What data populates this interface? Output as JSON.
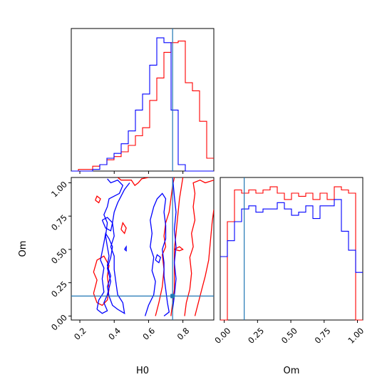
{
  "chart_data": {
    "type": "corner",
    "parameters": [
      "H0",
      "Om"
    ],
    "truths": {
      "H0": 0.74,
      "Om": 0.15
    },
    "colors": {
      "red": "#ff0000",
      "blue": "#0000ff",
      "truth": "#1f77b4"
    },
    "grid": false,
    "ticks": {
      "H0": [
        "0.2",
        "0.4",
        "0.6",
        "0.8"
      ],
      "Om": [
        "0.00",
        "0.25",
        "0.50",
        "0.75",
        "1.00"
      ]
    },
    "hist_H0": {
      "xlim": [
        0.15,
        0.98
      ],
      "bins": [
        0.15,
        0.1915,
        0.233,
        0.2745,
        0.316,
        0.3575,
        0.399,
        0.4405,
        0.482,
        0.5235,
        0.565,
        0.6065,
        0.648,
        0.6895,
        0.731,
        0.7725,
        0.814,
        0.8555,
        0.897,
        0.9385,
        0.98
      ],
      "series": [
        {
          "color": "red",
          "values": [
            0,
            1,
            1,
            3,
            4,
            7,
            9,
            12,
            16,
            22,
            27,
            44,
            58,
            74,
            80,
            81,
            55,
            50,
            31,
            8
          ]
        },
        {
          "color": "blue",
          "values": [
            0,
            0,
            0,
            1,
            4,
            8,
            11,
            17,
            25,
            38,
            48,
            66,
            83,
            80,
            38,
            4,
            0,
            0,
            0,
            0
          ]
        }
      ]
    },
    "hist_Om": {
      "xlim": [
        -0.03,
        1.04
      ],
      "bins": [
        -0.03,
        0.0235,
        0.077,
        0.1305,
        0.184,
        0.2375,
        0.291,
        0.3445,
        0.398,
        0.4515,
        0.505,
        0.5585,
        0.612,
        0.6655,
        0.719,
        0.7725,
        0.826,
        0.8795,
        0.933,
        0.9865,
        1.04
      ],
      "series": [
        {
          "color": "red",
          "values": [
            0,
            62,
            82,
            80,
            82,
            80,
            82,
            84,
            80,
            76,
            80,
            78,
            80,
            76,
            80,
            76,
            84,
            82,
            80,
            0
          ]
        },
        {
          "color": "blue",
          "values": [
            40,
            50,
            62,
            70,
            72,
            68,
            70,
            70,
            74,
            70,
            66,
            68,
            72,
            64,
            72,
            72,
            76,
            56,
            44,
            30
          ]
        }
      ]
    },
    "scatter_2d": {
      "xlim": [
        0.15,
        0.98
      ],
      "ylim": [
        -0.03,
        1.04
      ],
      "xlabel": "H0",
      "ylabel": "Om",
      "contours": [
        {
          "color": "red",
          "points": [
            [
              0.42,
              1.04
            ],
            [
              0.44,
              1.02
            ],
            [
              0.5,
              1.02
            ],
            [
              0.52,
              0.98
            ],
            [
              0.54,
              1.0
            ],
            [
              0.56,
              1.03
            ],
            [
              0.6,
              1.04
            ]
          ]
        },
        {
          "color": "red",
          "points": [
            [
              0.73,
              0.0
            ],
            [
              0.74,
              0.1
            ],
            [
              0.75,
              0.2
            ],
            [
              0.75,
              0.35
            ],
            [
              0.75,
              0.5
            ],
            [
              0.76,
              0.62
            ],
            [
              0.77,
              0.75
            ],
            [
              0.78,
              0.88
            ],
            [
              0.79,
              0.96
            ],
            [
              0.8,
              1.04
            ]
          ]
        },
        {
          "color": "red",
          "points": [
            [
              0.64,
              0.0
            ],
            [
              0.66,
              0.1
            ],
            [
              0.68,
              0.22
            ],
            [
              0.69,
              0.35
            ],
            [
              0.68,
              0.46
            ],
            [
              0.7,
              0.52
            ],
            [
              0.69,
              0.6
            ],
            [
              0.7,
              0.7
            ],
            [
              0.72,
              0.78
            ],
            [
              0.73,
              0.88
            ],
            [
              0.74,
              0.98
            ],
            [
              0.75,
              1.04
            ]
          ]
        },
        {
          "color": "red",
          "points": [
            [
              0.81,
              0.0
            ],
            [
              0.82,
              0.1
            ],
            [
              0.84,
              0.2
            ],
            [
              0.85,
              0.32
            ],
            [
              0.84,
              0.44
            ],
            [
              0.86,
              0.52
            ],
            [
              0.85,
              0.62
            ],
            [
              0.87,
              0.72
            ],
            [
              0.86,
              0.82
            ],
            [
              0.87,
              0.92
            ],
            [
              0.86,
              1.0
            ],
            [
              0.9,
              1.02
            ],
            [
              0.93,
              1.0
            ],
            [
              0.98,
              1.02
            ]
          ]
        },
        {
          "color": "red",
          "points": [
            [
              0.87,
              0.0
            ],
            [
              0.89,
              0.1
            ],
            [
              0.91,
              0.2
            ],
            [
              0.93,
              0.3
            ],
            [
              0.95,
              0.42
            ],
            [
              0.96,
              0.56
            ],
            [
              0.97,
              0.7
            ],
            [
              0.98,
              0.8
            ]
          ]
        },
        {
          "color": "red",
          "points": [
            [
              0.28,
              0.17
            ],
            [
              0.3,
              0.1
            ],
            [
              0.33,
              0.08
            ],
            [
              0.36,
              0.12
            ],
            [
              0.37,
              0.2
            ],
            [
              0.36,
              0.3
            ],
            [
              0.37,
              0.38
            ],
            [
              0.34,
              0.45
            ],
            [
              0.3,
              0.42
            ],
            [
              0.28,
              0.33
            ],
            [
              0.3,
              0.27
            ],
            [
              0.28,
              0.17
            ]
          ]
        },
        {
          "color": "red",
          "points": [
            [
              0.44,
              0.65
            ],
            [
              0.46,
              0.62
            ],
            [
              0.47,
              0.66
            ],
            [
              0.45,
              0.7
            ],
            [
              0.44,
              0.65
            ]
          ]
        },
        {
          "color": "red",
          "points": [
            [
              0.29,
              0.87
            ],
            [
              0.31,
              0.85
            ],
            [
              0.32,
              0.88
            ],
            [
              0.3,
              0.9
            ],
            [
              0.29,
              0.87
            ]
          ]
        },
        {
          "color": "red",
          "points": [
            [
              0.75,
              0.5
            ],
            [
              0.78,
              0.49
            ],
            [
              0.8,
              0.5
            ],
            [
              0.78,
              0.52
            ],
            [
              0.75,
              0.5
            ]
          ]
        }
      ]
    },
    "contours_blue": [
      {
        "color": "blue",
        "points": [
          [
            0.36,
            1.03
          ],
          [
            0.38,
            1.0
          ],
          [
            0.42,
            1.02
          ],
          [
            0.45,
            0.98
          ],
          [
            0.43,
            0.92
          ],
          [
            0.4,
            0.9
          ],
          [
            0.37,
            0.88
          ],
          [
            0.36,
            0.82
          ],
          [
            0.34,
            0.76
          ],
          [
            0.36,
            0.7
          ],
          [
            0.35,
            0.6
          ],
          [
            0.36,
            0.52
          ],
          [
            0.37,
            0.45
          ],
          [
            0.36,
            0.38
          ],
          [
            0.38,
            0.3
          ],
          [
            0.36,
            0.22
          ],
          [
            0.37,
            0.15
          ],
          [
            0.39,
            0.08
          ],
          [
            0.42,
            0.05
          ],
          [
            0.46,
            0.02
          ],
          [
            0.45,
            0.1
          ],
          [
            0.42,
            0.16
          ],
          [
            0.41,
            0.25
          ],
          [
            0.4,
            0.35
          ],
          [
            0.4,
            0.45
          ],
          [
            0.38,
            0.52
          ],
          [
            0.4,
            0.6
          ],
          [
            0.39,
            0.7
          ],
          [
            0.4,
            0.78
          ],
          [
            0.42,
            0.85
          ],
          [
            0.44,
            0.9
          ],
          [
            0.46,
            0.95
          ],
          [
            0.49,
            1.0
          ]
        ]
      },
      {
        "color": "blue",
        "points": [
          [
            0.3,
            0.05
          ],
          [
            0.31,
            0.12
          ],
          [
            0.34,
            0.18
          ],
          [
            0.33,
            0.28
          ],
          [
            0.34,
            0.36
          ],
          [
            0.32,
            0.42
          ],
          [
            0.34,
            0.55
          ],
          [
            0.35,
            0.62
          ],
          [
            0.37,
            0.58
          ],
          [
            0.39,
            0.52
          ],
          [
            0.38,
            0.44
          ],
          [
            0.36,
            0.36
          ],
          [
            0.38,
            0.26
          ],
          [
            0.36,
            0.16
          ],
          [
            0.34,
            0.1
          ],
          [
            0.36,
            0.04
          ],
          [
            0.33,
            0.02
          ],
          [
            0.3,
            0.05
          ]
        ]
      },
      {
        "color": "blue",
        "points": [
          [
            0.33,
            0.72
          ],
          [
            0.35,
            0.66
          ],
          [
            0.38,
            0.64
          ],
          [
            0.39,
            0.7
          ],
          [
            0.36,
            0.74
          ],
          [
            0.33,
            0.72
          ]
        ]
      },
      {
        "color": "blue",
        "points": [
          [
            0.58,
            0.0
          ],
          [
            0.6,
            0.08
          ],
          [
            0.63,
            0.16
          ],
          [
            0.64,
            0.26
          ],
          [
            0.62,
            0.34
          ],
          [
            0.63,
            0.44
          ],
          [
            0.61,
            0.52
          ],
          [
            0.62,
            0.62
          ],
          [
            0.61,
            0.72
          ],
          [
            0.63,
            0.82
          ],
          [
            0.65,
            0.88
          ],
          [
            0.68,
            0.92
          ],
          [
            0.7,
            0.88
          ],
          [
            0.69,
            0.78
          ],
          [
            0.7,
            0.68
          ],
          [
            0.7,
            0.58
          ],
          [
            0.68,
            0.5
          ],
          [
            0.69,
            0.4
          ],
          [
            0.69,
            0.3
          ],
          [
            0.7,
            0.2
          ],
          [
            0.71,
            0.1
          ],
          [
            0.72,
            0.03
          ],
          [
            0.69,
            0.0
          ]
        ]
      },
      {
        "color": "blue",
        "points": [
          [
            0.74,
            1.04
          ],
          [
            0.75,
            0.9
          ],
          [
            0.76,
            0.78
          ],
          [
            0.75,
            0.65
          ],
          [
            0.76,
            0.52
          ],
          [
            0.75,
            0.4
          ],
          [
            0.76,
            0.28
          ],
          [
            0.75,
            0.15
          ],
          [
            0.74,
            0.05
          ]
        ]
      },
      {
        "color": "blue",
        "points": [
          [
            0.46,
            0.5
          ],
          [
            0.47,
            0.49
          ],
          [
            0.47,
            0.52
          ],
          [
            0.46,
            0.5
          ]
        ]
      },
      {
        "color": "blue",
        "points": [
          [
            0.64,
            0.42
          ],
          [
            0.66,
            0.4
          ],
          [
            0.67,
            0.44
          ],
          [
            0.65,
            0.46
          ],
          [
            0.64,
            0.42
          ]
        ]
      }
    ]
  }
}
